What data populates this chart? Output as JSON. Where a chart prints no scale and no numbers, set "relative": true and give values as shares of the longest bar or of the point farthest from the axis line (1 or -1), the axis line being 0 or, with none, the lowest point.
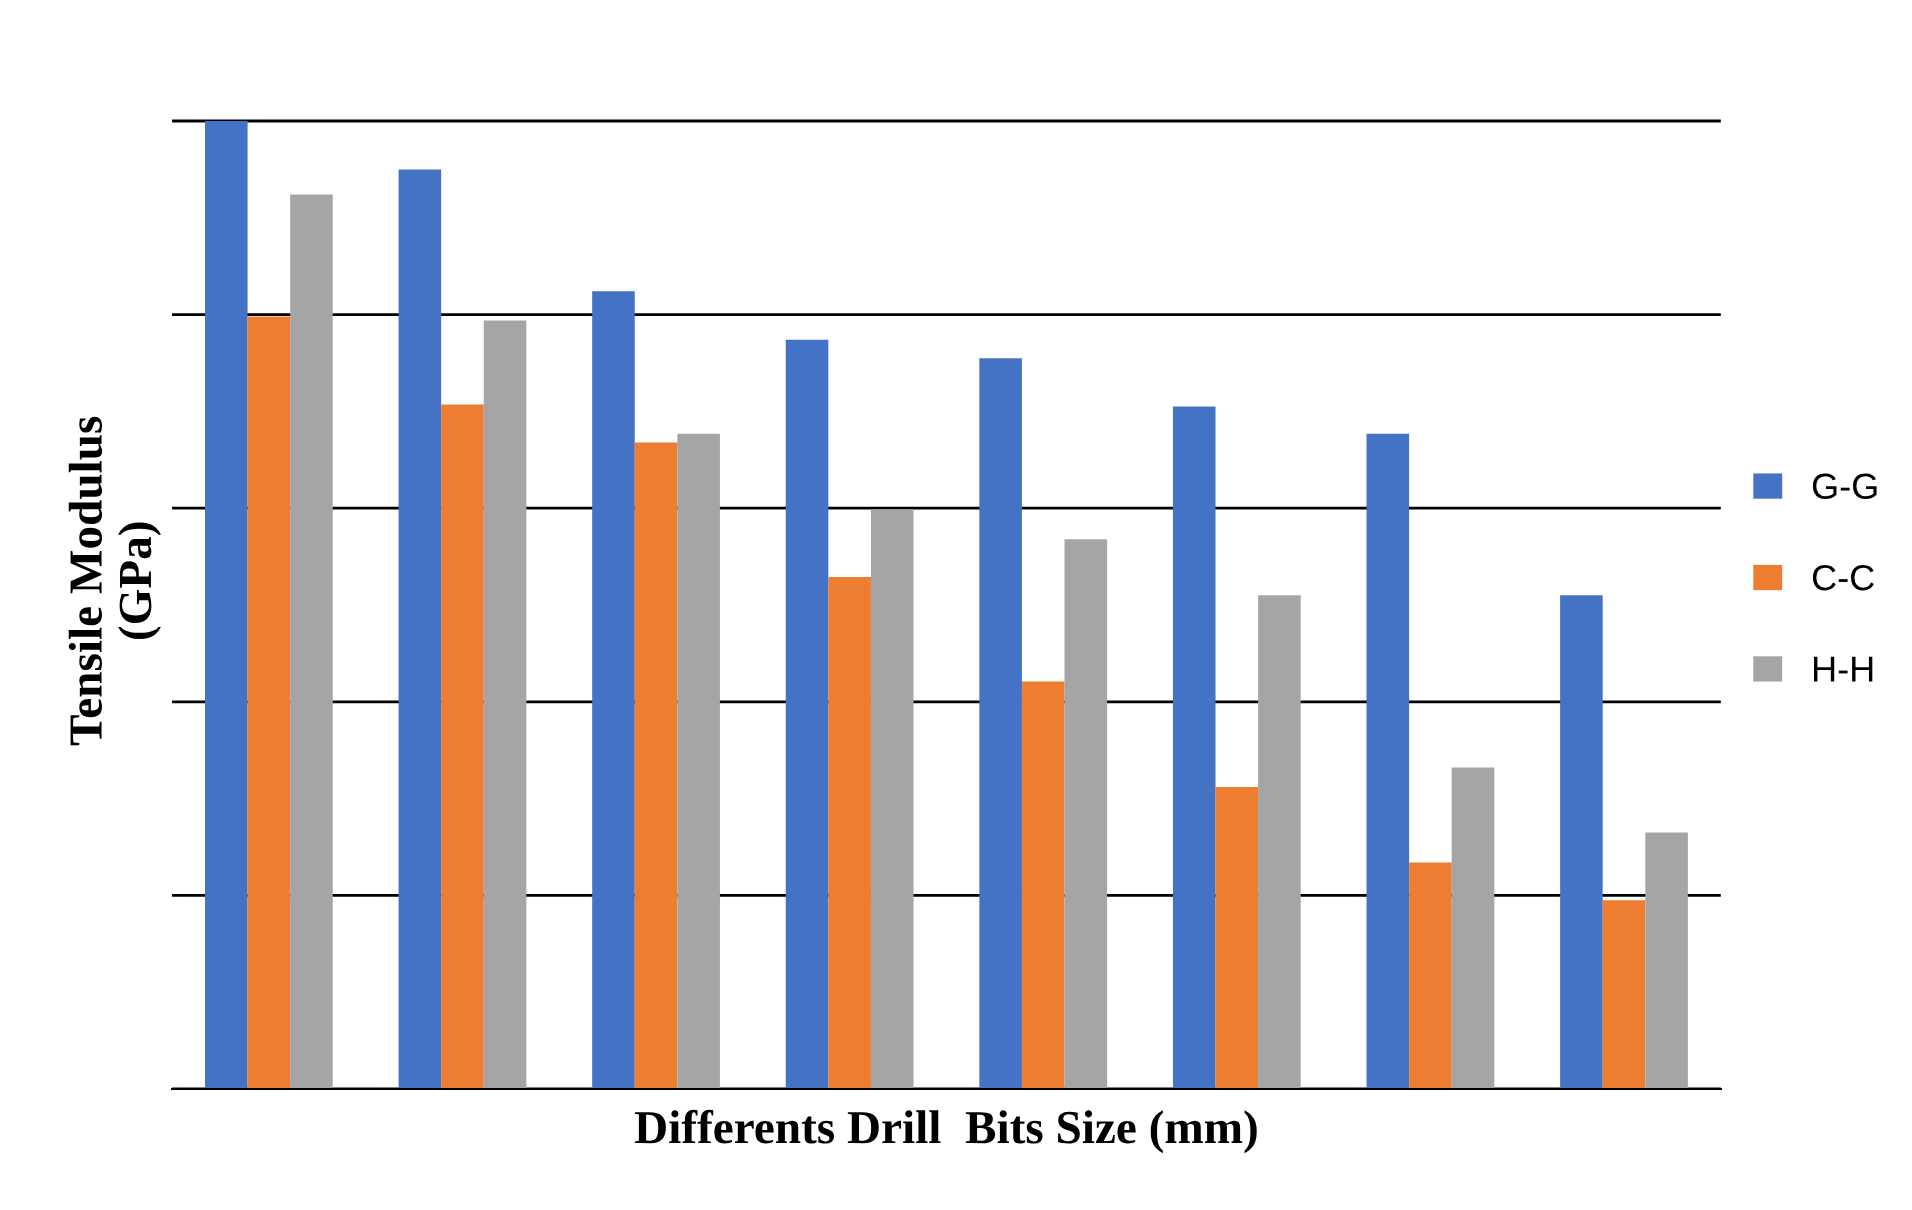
{
  "chart_data": {
    "type": "bar",
    "xlabel": "Differents Drill  Bits Size (mm)",
    "ylabel": "Tensile Modulus\n(GPa)",
    "relative": true,
    "grid": "y",
    "legend": "right",
    "categories": [
      null,
      null,
      null,
      null,
      null,
      null,
      null,
      null
    ],
    "series": [
      {
        "name": "G-G",
        "color": "#4472c4",
        "values": [
          1,
          0.95,
          0.824,
          0.774,
          0.755,
          0.705,
          0.677,
          0.51
        ]
      },
      {
        "name": "C-C",
        "color": "#ed7d31",
        "values": [
          0.798,
          0.707,
          0.668,
          0.529,
          0.421,
          0.312,
          0.234,
          0.195
        ]
      },
      {
        "name": "H-H",
        "color": "#a5a5a5",
        "values": [
          0.924,
          0.794,
          0.677,
          0.599,
          0.568,
          0.51,
          0.332,
          0.265
        ]
      }
    ]
  }
}
